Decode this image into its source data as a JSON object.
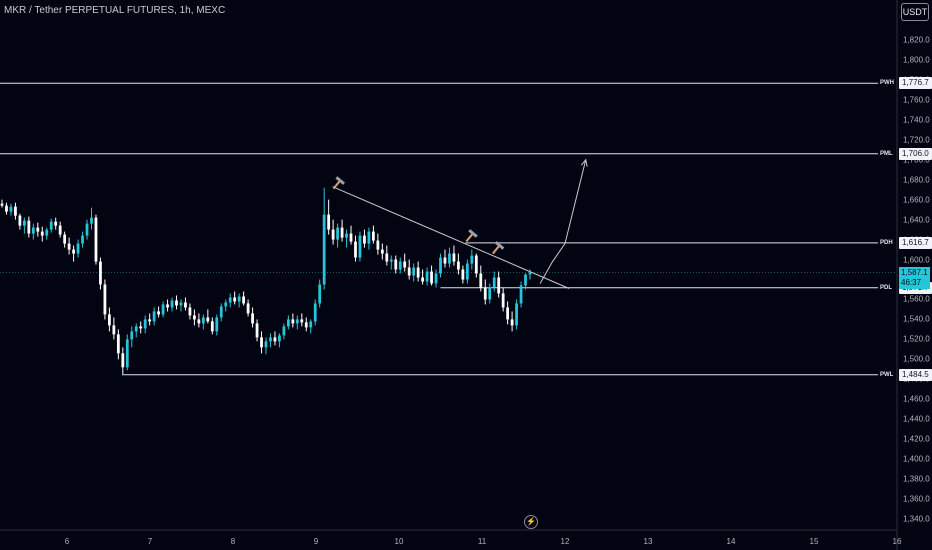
{
  "header": {
    "title": "MKR / Tether PERPETUAL FUTURES, 1h, MEXC",
    "currency_button": "USDT"
  },
  "colors": {
    "background": "#020511",
    "bull": "#26c6da",
    "bear": "#ffffff",
    "line": "#e0e3eb"
  },
  "icons": {
    "bottom_center": "lightning-bolt-icon",
    "markers": "pick-hammer-icon"
  },
  "chart_data": {
    "type": "candlestick",
    "ylim": [
      1330,
      1840
    ],
    "y_ticks": [
      "1,820.0",
      "1,800.0",
      "1,780.0",
      "1,760.0",
      "1,740.0",
      "1,720.0",
      "1,700.0",
      "1,680.0",
      "1,660.0",
      "1,640.0",
      "1,620.0",
      "1,600.0",
      "1,580.0",
      "1,560.0",
      "1,540.0",
      "1,520.0",
      "1,500.0",
      "1,480.0",
      "1,460.0",
      "1,440.0",
      "1,420.0",
      "1,400.0",
      "1,380.0",
      "1,360.0",
      "1,340.0"
    ],
    "y_tick_values": [
      1820,
      1800,
      1780,
      1760,
      1740,
      1720,
      1700,
      1680,
      1660,
      1640,
      1620,
      1600,
      1580,
      1560,
      1540,
      1520,
      1500,
      1480,
      1460,
      1440,
      1420,
      1400,
      1380,
      1360,
      1340
    ],
    "x_ticks": [
      "6",
      "7",
      "8",
      "9",
      "10",
      "11",
      "12",
      "13",
      "14",
      "15",
      "16"
    ],
    "x_tick_days": [
      6,
      7,
      8,
      9,
      10,
      11,
      12,
      13,
      14,
      15,
      16
    ],
    "x_range_days": [
      5.18,
      15.96
    ],
    "levels": [
      {
        "label": "PWH",
        "price": 1776.7,
        "price_label": "1,776.7",
        "from_day": 5.18
      },
      {
        "label": "PML",
        "price": 1706.0,
        "price_label": "1,706.0",
        "from_day": 5.18
      },
      {
        "label": "PDH",
        "price": 1616.7,
        "price_label": "1,616.7",
        "from_day": 10.8
      },
      {
        "label": "PDL",
        "price": 1571.7,
        "price_label": "1,571.7",
        "from_day": 10.5
      },
      {
        "label": "PWL",
        "price": 1484.5,
        "price_label": "1,484.5",
        "from_day": 6.68
      }
    ],
    "current_price": {
      "price": 1587.1,
      "price_label": "1,587.1",
      "countdown": "46:37"
    },
    "trendline": [
      [
        9.2,
        1673
      ],
      [
        12.05,
        1571
      ]
    ],
    "projection": [
      [
        11.7,
        1576
      ],
      [
        11.85,
        1598
      ],
      [
        12.0,
        1616
      ],
      [
        12.25,
        1700
      ]
    ],
    "markers": [
      [
        9.28,
        1678
      ],
      [
        10.88,
        1625
      ],
      [
        11.2,
        1613
      ]
    ],
    "candles": [
      [
        1656,
        1660,
        1652,
        1654
      ],
      [
        1654,
        1657,
        1645,
        1648
      ],
      [
        1648,
        1656,
        1644,
        1653
      ],
      [
        1653,
        1657,
        1640,
        1644
      ],
      [
        1644,
        1646,
        1630,
        1634
      ],
      [
        1634,
        1642,
        1626,
        1639
      ],
      [
        1639,
        1643,
        1622,
        1626
      ],
      [
        1626,
        1636,
        1620,
        1632
      ],
      [
        1632,
        1637,
        1623,
        1628
      ],
      [
        1628,
        1633,
        1618,
        1624
      ],
      [
        1624,
        1632,
        1620,
        1630
      ],
      [
        1630,
        1641,
        1627,
        1638
      ],
      [
        1638,
        1642,
        1630,
        1634
      ],
      [
        1634,
        1638,
        1622,
        1625
      ],
      [
        1625,
        1628,
        1612,
        1616
      ],
      [
        1616,
        1622,
        1605,
        1610
      ],
      [
        1610,
        1614,
        1598,
        1606
      ],
      [
        1606,
        1620,
        1602,
        1616
      ],
      [
        1616,
        1628,
        1612,
        1624
      ],
      [
        1624,
        1640,
        1620,
        1636
      ],
      [
        1636,
        1652,
        1630,
        1642
      ],
      [
        1642,
        1645,
        1595,
        1598
      ],
      [
        1598,
        1602,
        1570,
        1575
      ],
      [
        1575,
        1580,
        1540,
        1545
      ],
      [
        1545,
        1552,
        1528,
        1534
      ],
      [
        1534,
        1542,
        1520,
        1525
      ],
      [
        1525,
        1530,
        1500,
        1506
      ],
      [
        1506,
        1512,
        1484,
        1492
      ],
      [
        1492,
        1525,
        1489,
        1520
      ],
      [
        1520,
        1533,
        1512,
        1528
      ],
      [
        1528,
        1536,
        1522,
        1533
      ],
      [
        1533,
        1538,
        1526,
        1531
      ],
      [
        1531,
        1544,
        1526,
        1540
      ],
      [
        1540,
        1546,
        1534,
        1538
      ],
      [
        1538,
        1552,
        1534,
        1548
      ],
      [
        1548,
        1553,
        1542,
        1545
      ],
      [
        1545,
        1558,
        1542,
        1555
      ],
      [
        1555,
        1560,
        1548,
        1552
      ],
      [
        1552,
        1562,
        1548,
        1559
      ],
      [
        1559,
        1564,
        1550,
        1554
      ],
      [
        1554,
        1560,
        1548,
        1557
      ],
      [
        1557,
        1562,
        1549,
        1552
      ],
      [
        1552,
        1556,
        1540,
        1544
      ],
      [
        1544,
        1550,
        1534,
        1540
      ],
      [
        1540,
        1546,
        1532,
        1536
      ],
      [
        1536,
        1545,
        1530,
        1542
      ],
      [
        1542,
        1550,
        1536,
        1538
      ],
      [
        1538,
        1542,
        1525,
        1528
      ],
      [
        1528,
        1545,
        1524,
        1542
      ],
      [
        1542,
        1556,
        1538,
        1553
      ],
      [
        1553,
        1560,
        1548,
        1557
      ],
      [
        1557,
        1566,
        1552,
        1562
      ],
      [
        1562,
        1568,
        1555,
        1558
      ],
      [
        1558,
        1566,
        1552,
        1563
      ],
      [
        1563,
        1568,
        1554,
        1556
      ],
      [
        1556,
        1560,
        1543,
        1546
      ],
      [
        1546,
        1552,
        1532,
        1536
      ],
      [
        1536,
        1540,
        1518,
        1522
      ],
      [
        1522,
        1528,
        1506,
        1512
      ],
      [
        1512,
        1522,
        1505,
        1518
      ],
      [
        1518,
        1526,
        1512,
        1522
      ],
      [
        1522,
        1528,
        1514,
        1518
      ],
      [
        1518,
        1526,
        1512,
        1524
      ],
      [
        1524,
        1536,
        1520,
        1533
      ],
      [
        1533,
        1544,
        1530,
        1540
      ],
      [
        1540,
        1546,
        1532,
        1536
      ],
      [
        1536,
        1544,
        1530,
        1540
      ],
      [
        1540,
        1546,
        1533,
        1537
      ],
      [
        1537,
        1542,
        1528,
        1532
      ],
      [
        1532,
        1540,
        1526,
        1538
      ],
      [
        1538,
        1560,
        1534,
        1556
      ],
      [
        1556,
        1580,
        1552,
        1575
      ],
      [
        1575,
        1672,
        1570,
        1645
      ],
      [
        1645,
        1660,
        1625,
        1630
      ],
      [
        1630,
        1640,
        1615,
        1620
      ],
      [
        1620,
        1636,
        1612,
        1632
      ],
      [
        1632,
        1640,
        1618,
        1622
      ],
      [
        1622,
        1630,
        1612,
        1626
      ],
      [
        1626,
        1634,
        1615,
        1618
      ],
      [
        1618,
        1624,
        1598,
        1602
      ],
      [
        1602,
        1628,
        1598,
        1624
      ],
      [
        1624,
        1630,
        1612,
        1616
      ],
      [
        1616,
        1632,
        1610,
        1628
      ],
      [
        1628,
        1634,
        1616,
        1619
      ],
      [
        1619,
        1626,
        1605,
        1610
      ],
      [
        1610,
        1616,
        1600,
        1606
      ],
      [
        1606,
        1614,
        1594,
        1598
      ],
      [
        1598,
        1604,
        1590,
        1600
      ],
      [
        1600,
        1604,
        1586,
        1590
      ],
      [
        1590,
        1602,
        1586,
        1598
      ],
      [
        1598,
        1606,
        1588,
        1592
      ],
      [
        1592,
        1600,
        1580,
        1584
      ],
      [
        1584,
        1596,
        1578,
        1592
      ],
      [
        1592,
        1598,
        1578,
        1582
      ],
      [
        1582,
        1590,
        1575,
        1578
      ],
      [
        1578,
        1592,
        1574,
        1588
      ],
      [
        1588,
        1594,
        1574,
        1576
      ],
      [
        1576,
        1590,
        1572,
        1586
      ],
      [
        1586,
        1606,
        1582,
        1602
      ],
      [
        1602,
        1610,
        1592,
        1596
      ],
      [
        1596,
        1612,
        1592,
        1606
      ],
      [
        1606,
        1614,
        1594,
        1598
      ],
      [
        1598,
        1606,
        1585,
        1590
      ],
      [
        1590,
        1594,
        1576,
        1580
      ],
      [
        1580,
        1600,
        1576,
        1596
      ],
      [
        1596,
        1610,
        1590,
        1604
      ],
      [
        1604,
        1606,
        1582,
        1586
      ],
      [
        1586,
        1594,
        1568,
        1572
      ],
      [
        1572,
        1580,
        1555,
        1560
      ],
      [
        1560,
        1576,
        1556,
        1572
      ],
      [
        1572,
        1588,
        1568,
        1582
      ],
      [
        1582,
        1588,
        1562,
        1566
      ],
      [
        1566,
        1572,
        1548,
        1552
      ],
      [
        1552,
        1558,
        1535,
        1540
      ],
      [
        1540,
        1548,
        1528,
        1534
      ],
      [
        1534,
        1560,
        1530,
        1556
      ],
      [
        1556,
        1578,
        1552,
        1574
      ],
      [
        1574,
        1586,
        1570,
        1585
      ],
      [
        1585,
        1590,
        1580,
        1587
      ]
    ]
  }
}
